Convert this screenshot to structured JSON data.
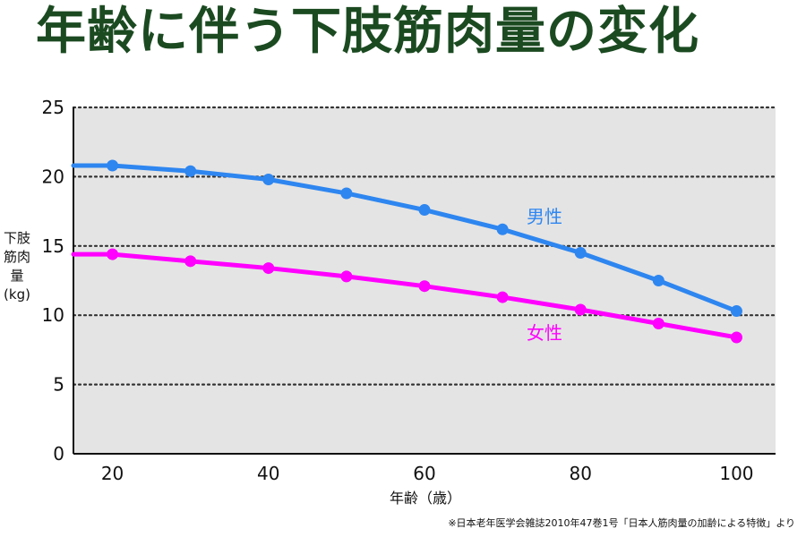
{
  "title": "年齢に伴う下肢筋肉量の変化",
  "source_note": "※日本老年医学会雑誌2010年47巻1号「日本人筋肉量の加齢による特徴」より",
  "chart_data": {
    "type": "line",
    "title": "年齢に伴う下肢筋肉量の変化",
    "xlabel": "年齢（歳）",
    "ylabel": "下肢筋肉量\n(kg)",
    "xlim": [
      15,
      105
    ],
    "ylim": [
      0,
      25
    ],
    "xticks": [
      20,
      40,
      60,
      80,
      100
    ],
    "yticks": [
      0,
      5,
      10,
      15,
      20,
      25
    ],
    "grid": true,
    "background": "#e4e4e4",
    "x": [
      20,
      30,
      40,
      50,
      60,
      70,
      80,
      90,
      100
    ],
    "series": [
      {
        "name": "男性",
        "color": "#2e86f0",
        "values": [
          20.8,
          20.4,
          19.8,
          18.8,
          17.6,
          16.2,
          14.5,
          12.5,
          10.3
        ]
      },
      {
        "name": "女性",
        "color": "#ff00ff",
        "values": [
          14.4,
          13.9,
          13.4,
          12.8,
          12.1,
          11.3,
          10.4,
          9.4,
          8.4
        ]
      }
    ]
  }
}
